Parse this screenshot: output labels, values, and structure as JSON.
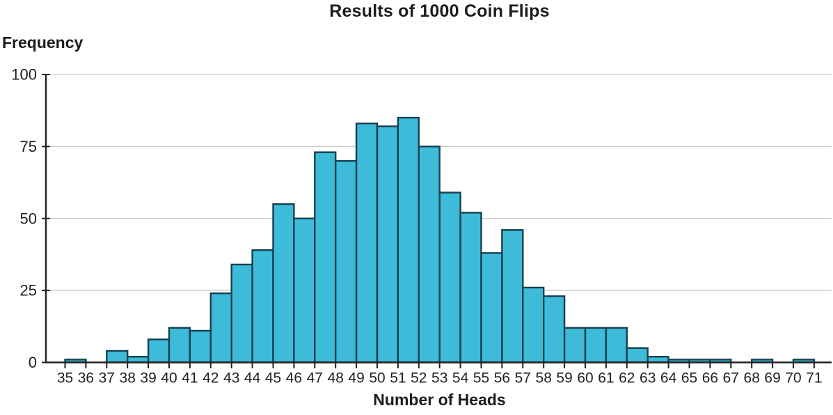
{
  "page": {
    "background": "#ffffff"
  },
  "chart_data": {
    "type": "bar",
    "subtype": "histogram",
    "title": "Results of 1000 Coin Flips",
    "xlabel": "Number of Heads",
    "ylabel": "Frequency",
    "bin_start": 35,
    "bin_width": 1,
    "x_tick_labels": [
      35,
      36,
      37,
      38,
      39,
      40,
      41,
      42,
      43,
      44,
      45,
      46,
      47,
      48,
      49,
      50,
      51,
      52,
      53,
      54,
      55,
      56,
      57,
      58,
      59,
      60,
      61,
      62,
      63,
      64,
      65,
      66,
      67,
      68,
      69,
      70,
      71
    ],
    "values": [
      1,
      0,
      4,
      2,
      8,
      12,
      11,
      24,
      34,
      39,
      55,
      50,
      73,
      70,
      83,
      82,
      85,
      75,
      59,
      52,
      38,
      46,
      26,
      23,
      12,
      12,
      12,
      5,
      2,
      1,
      1,
      1,
      0,
      1,
      0,
      1
    ],
    "total_flips_shown_in_title": 1000,
    "yticks": [
      0,
      25,
      50,
      75,
      100
    ],
    "ylim": [
      0,
      100
    ],
    "grid": "horizontal",
    "legend": "none",
    "bar_fill": "#3DBBD9",
    "bar_stroke": "#164050",
    "grid_color": "#C9C9C9",
    "axis_color": "#222222",
    "text_color": "#1F1F1F"
  }
}
